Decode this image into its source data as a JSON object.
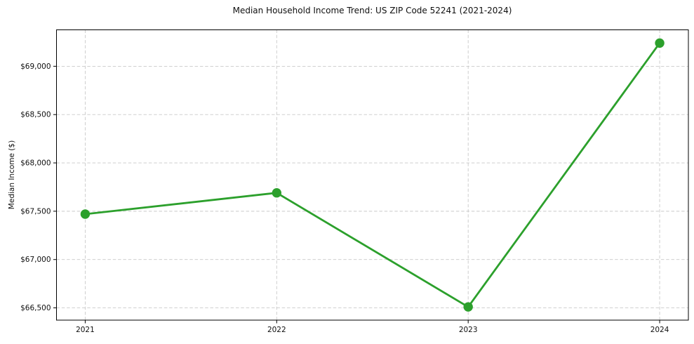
{
  "chart_data": {
    "type": "line",
    "title": "Median Household Income Trend: US ZIP Code 52241 (2021-2024)",
    "xlabel": "",
    "ylabel": "Median Income ($)",
    "x": [
      2021,
      2022,
      2023,
      2024
    ],
    "x_tick_labels": [
      "2021",
      "2022",
      "2023",
      "2024"
    ],
    "series": [
      {
        "name": "Median Household Income",
        "values": [
          67470,
          67690,
          66510,
          69240
        ],
        "color": "#2ca02c",
        "marker": "circle"
      }
    ],
    "y_ticks": [
      66500,
      67000,
      67500,
      68000,
      68500,
      69000
    ],
    "y_tick_labels": [
      "$66,500",
      "$67,000",
      "$67,500",
      "$68,000",
      "$68,500",
      "$69,000"
    ],
    "xlim": [
      2020.85,
      2024.15
    ],
    "ylim": [
      66373,
      69377
    ],
    "grid": true,
    "grid_style": "dashed",
    "background_color": "#ffffff",
    "line_color": "#2ca02c"
  }
}
